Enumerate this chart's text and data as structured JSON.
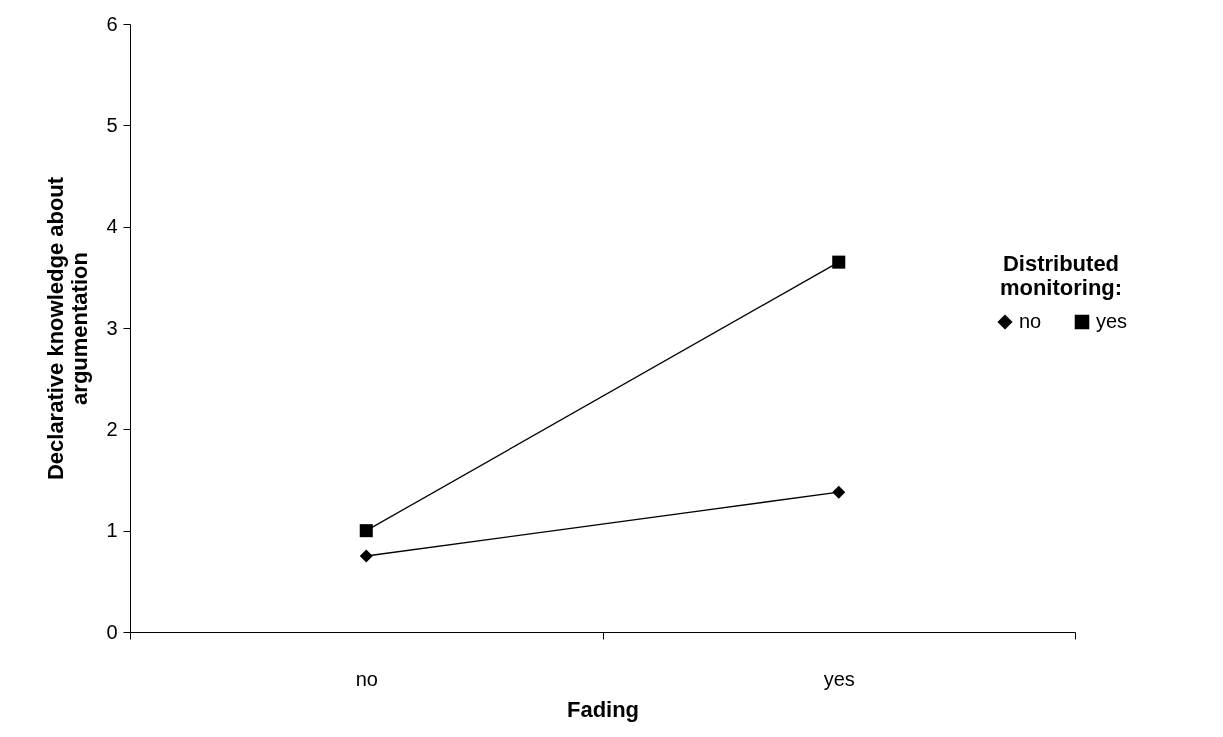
{
  "chart_data": {
    "type": "line",
    "xlabel": "Fading",
    "ylabel": "Declarative knowledge about argumentation",
    "legend_title": "Distributed monitoring:",
    "categories": [
      "no",
      "yes"
    ],
    "series": [
      {
        "name": "no",
        "color": "#000000",
        "marker": "diamond",
        "values": [
          0.75,
          1.38
        ]
      },
      {
        "name": "yes",
        "color": "#000000",
        "marker": "square",
        "values": [
          1.0,
          3.65
        ]
      }
    ],
    "ylim": [
      0,
      6
    ],
    "yticks": [
      0,
      1,
      2,
      3,
      4,
      5,
      6
    ],
    "grid": false,
    "legend": "right",
    "line_style": "solid"
  }
}
